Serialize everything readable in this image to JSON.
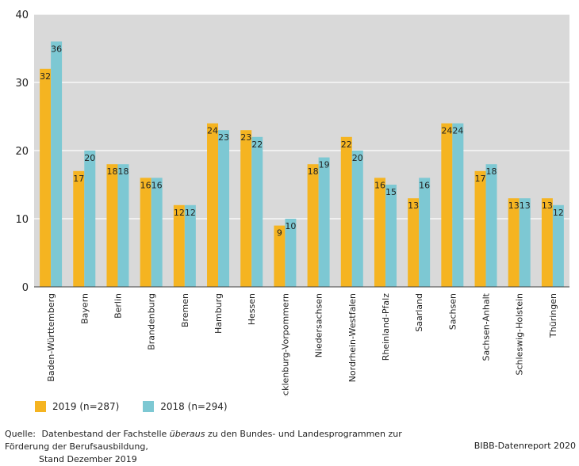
{
  "chart_data": {
    "type": "bar",
    "ylim": [
      0,
      40
    ],
    "yticks": [
      0,
      10,
      20,
      30,
      40
    ],
    "categories": [
      "Baden-Württemberg",
      "Bayern",
      "Berlin",
      "Brandenburg",
      "Bremen",
      "Hamburg",
      "Hessen",
      "Mecklenburg-Vorpommern",
      "Niedersachsen",
      "Nordrhein-Westfalen",
      "Rheinland-Pfalz",
      "Saarland",
      "Sachsen",
      "Sachsen-Anhalt",
      "Schleswig-Holstein",
      "Thüringen"
    ],
    "series": [
      {
        "name": "2019 (n=287)",
        "color": "#F5B421",
        "values": [
          32,
          17,
          18,
          16,
          12,
          24,
          23,
          9,
          18,
          22,
          16,
          13,
          24,
          17,
          13,
          13
        ]
      },
      {
        "name": "2018 (n=294)",
        "color": "#7DC8D3",
        "values": [
          36,
          20,
          18,
          16,
          12,
          23,
          22,
          10,
          19,
          20,
          15,
          16,
          24,
          18,
          13,
          12
        ]
      }
    ],
    "grid": true,
    "plot_background": "#D9D9D9"
  },
  "legend": {
    "item_2019": "2019 (n=287)",
    "item_2018": "2018 (n=294)"
  },
  "source": {
    "lead": "Quelle:",
    "text_before": "Datenbestand der Fachstelle",
    "emphasis": "überaus",
    "text_after": "zu den Bundes- und Landesprogrammen zur Förderung der Berufsausbildung,",
    "line2": "Stand Dezember 2019"
  },
  "credit": "BIBB-Datenreport 2020"
}
